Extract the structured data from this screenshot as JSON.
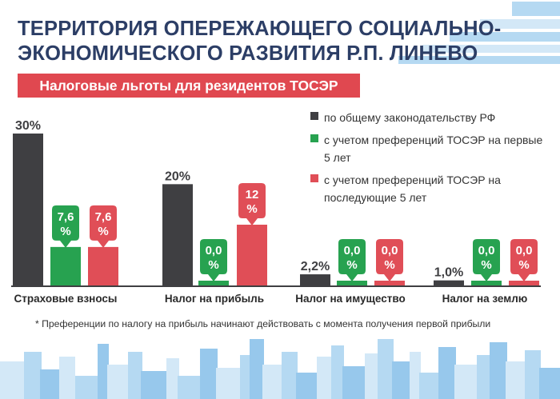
{
  "header": {
    "title_line1": "ТЕРРИТОРИЯ ОПЕРЕЖАЮЩЕГО СОЦИАЛЬНО-",
    "title_line2": "ЭКОНОМИЧЕСКОГО РАЗВИТИЯ Р.П. ЛИНЕВО",
    "subtitle": "Налоговые льготы для резидентов ТОСЭР"
  },
  "colors": {
    "dark": "#3f3f42",
    "green": "#27a250",
    "red": "#e04e57",
    "title": "#2c3e66",
    "subtitle_bg": "#e04850",
    "city_light": "#d3e8f7",
    "city_mid": "#b5d9f2",
    "city_dark": "#97c8ec"
  },
  "legend": [
    {
      "color": "#3f3f42",
      "label": "по общему законодательству РФ"
    },
    {
      "color": "#27a250",
      "label": "с учетом преференций ТОСЭР на первые 5 лет"
    },
    {
      "color": "#e04e57",
      "label": "с учетом преференций ТОСЭР на последующие 5 лет"
    }
  ],
  "footnote": "*  Преференции по налогу на прибыль начинают действовать с момента получения первой прибыли",
  "chart_data": {
    "type": "bar",
    "categories": [
      "Страховые взносы",
      "Налог на прибыль",
      "Налог на имущество",
      "Налог на землю"
    ],
    "series": [
      {
        "name": "по общему законодательству РФ",
        "values": [
          30,
          20,
          2.2,
          1.0
        ],
        "labels": [
          "30%",
          "20%",
          "2,2%",
          "1,0%"
        ]
      },
      {
        "name": "с учетом преференций ТОСЭР на первые 5 лет",
        "values": [
          7.6,
          0,
          0,
          0
        ],
        "labels": [
          "7,6 %",
          "0,0 %",
          "0,0 %",
          "0,0 %"
        ]
      },
      {
        "name": "с учетом преференций ТОСЭР на последующие 5 лет",
        "values": [
          7.6,
          12,
          0,
          0
        ],
        "labels": [
          "7,6 %",
          "12 %",
          "0,0 %",
          "0,0 %"
        ]
      }
    ],
    "ylim": [
      0,
      30
    ],
    "grid": false,
    "legend_position": "top-right",
    "xlabel": "",
    "ylabel": ""
  }
}
